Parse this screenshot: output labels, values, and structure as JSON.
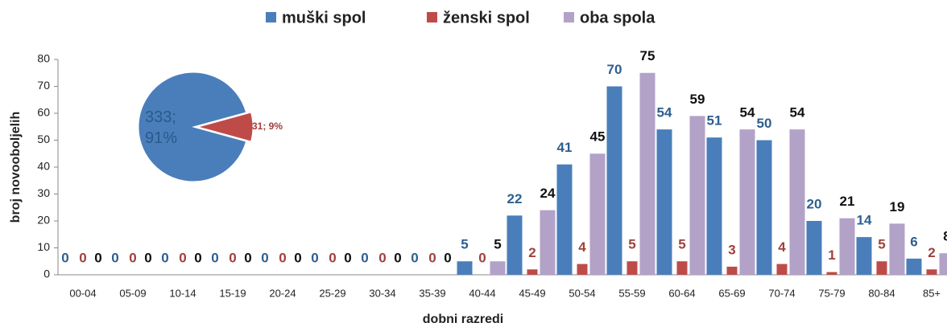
{
  "chart_data": [
    {
      "type": "bar",
      "categories": [
        "00-04",
        "05-09",
        "10-14",
        "15-19",
        "20-24",
        "25-29",
        "30-34",
        "35-39",
        "40-44",
        "45-49",
        "50-54",
        "55-59",
        "60-64",
        "65-69",
        "70-74",
        "75-79",
        "80-84",
        "85+"
      ],
      "series": [
        {
          "name": "muški spol",
          "color": "#4a7ebb",
          "values": [
            0,
            0,
            0,
            0,
            0,
            0,
            0,
            0,
            5,
            22,
            41,
            70,
            54,
            51,
            50,
            20,
            14,
            6
          ]
        },
        {
          "name": "ženski spol",
          "color": "#be4b48",
          "values": [
            0,
            0,
            0,
            0,
            0,
            0,
            0,
            0,
            0,
            2,
            4,
            5,
            5,
            3,
            4,
            1,
            5,
            2
          ]
        },
        {
          "name": "oba spola",
          "color": "#b3a2c7",
          "values": [
            0,
            0,
            0,
            0,
            0,
            0,
            0,
            0,
            5,
            24,
            45,
            75,
            59,
            54,
            54,
            21,
            19,
            8
          ]
        }
      ],
      "xlabel": "dobni razredi",
      "ylabel": "broj novooboljelih",
      "ylim": [
        0,
        80
      ],
      "yticks": [
        0,
        10,
        20,
        30,
        40,
        50,
        60,
        70,
        80
      ],
      "legend": "top"
    },
    {
      "type": "pie",
      "values": [
        333,
        31
      ],
      "value_labels": [
        "333; 91%",
        "31; 9%"
      ],
      "colors": [
        "#4a7ebb",
        "#be4b48"
      ]
    }
  ]
}
